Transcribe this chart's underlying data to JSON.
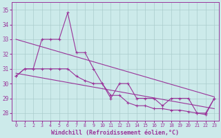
{
  "x_vals": [
    0,
    1,
    2,
    3,
    4,
    5,
    6,
    7,
    8,
    9,
    10,
    11,
    12,
    13,
    14,
    15,
    16,
    17,
    18,
    19,
    20,
    21,
    22,
    23
  ],
  "zigzag": [
    30.5,
    31.0,
    31.0,
    33.0,
    33.0,
    33.0,
    34.8,
    32.1,
    32.1,
    31.0,
    30.0,
    29.0,
    30.0,
    30.0,
    29.0,
    29.0,
    29.0,
    28.5,
    29.0,
    29.0,
    29.0,
    28.0,
    28.0,
    29.0
  ],
  "lower": [
    30.5,
    31.0,
    31.0,
    31.0,
    31.0,
    31.0,
    31.0,
    30.5,
    30.2,
    30.0,
    30.0,
    29.2,
    29.2,
    28.7,
    28.5,
    28.5,
    28.3,
    28.3,
    28.2,
    28.2,
    28.1,
    28.0,
    27.9,
    29.0
  ],
  "trend1_x": [
    0,
    23
  ],
  "trend1_y": [
    33.0,
    29.1
  ],
  "trend2_x": [
    0,
    23
  ],
  "trend2_y": [
    30.7,
    28.3
  ],
  "line_color": "#993399",
  "bg_color": "#cceaea",
  "grid_color": "#aacccc",
  "ylim": [
    27.5,
    35.5
  ],
  "yticks": [
    28,
    29,
    30,
    31,
    32,
    33,
    34,
    35
  ],
  "xlim": [
    -0.5,
    23.5
  ],
  "xlabel": "Windchill (Refroidissement éolien,°C)",
  "xlabel_color": "#993399",
  "tick_color": "#993399",
  "spine_color": "#993399"
}
